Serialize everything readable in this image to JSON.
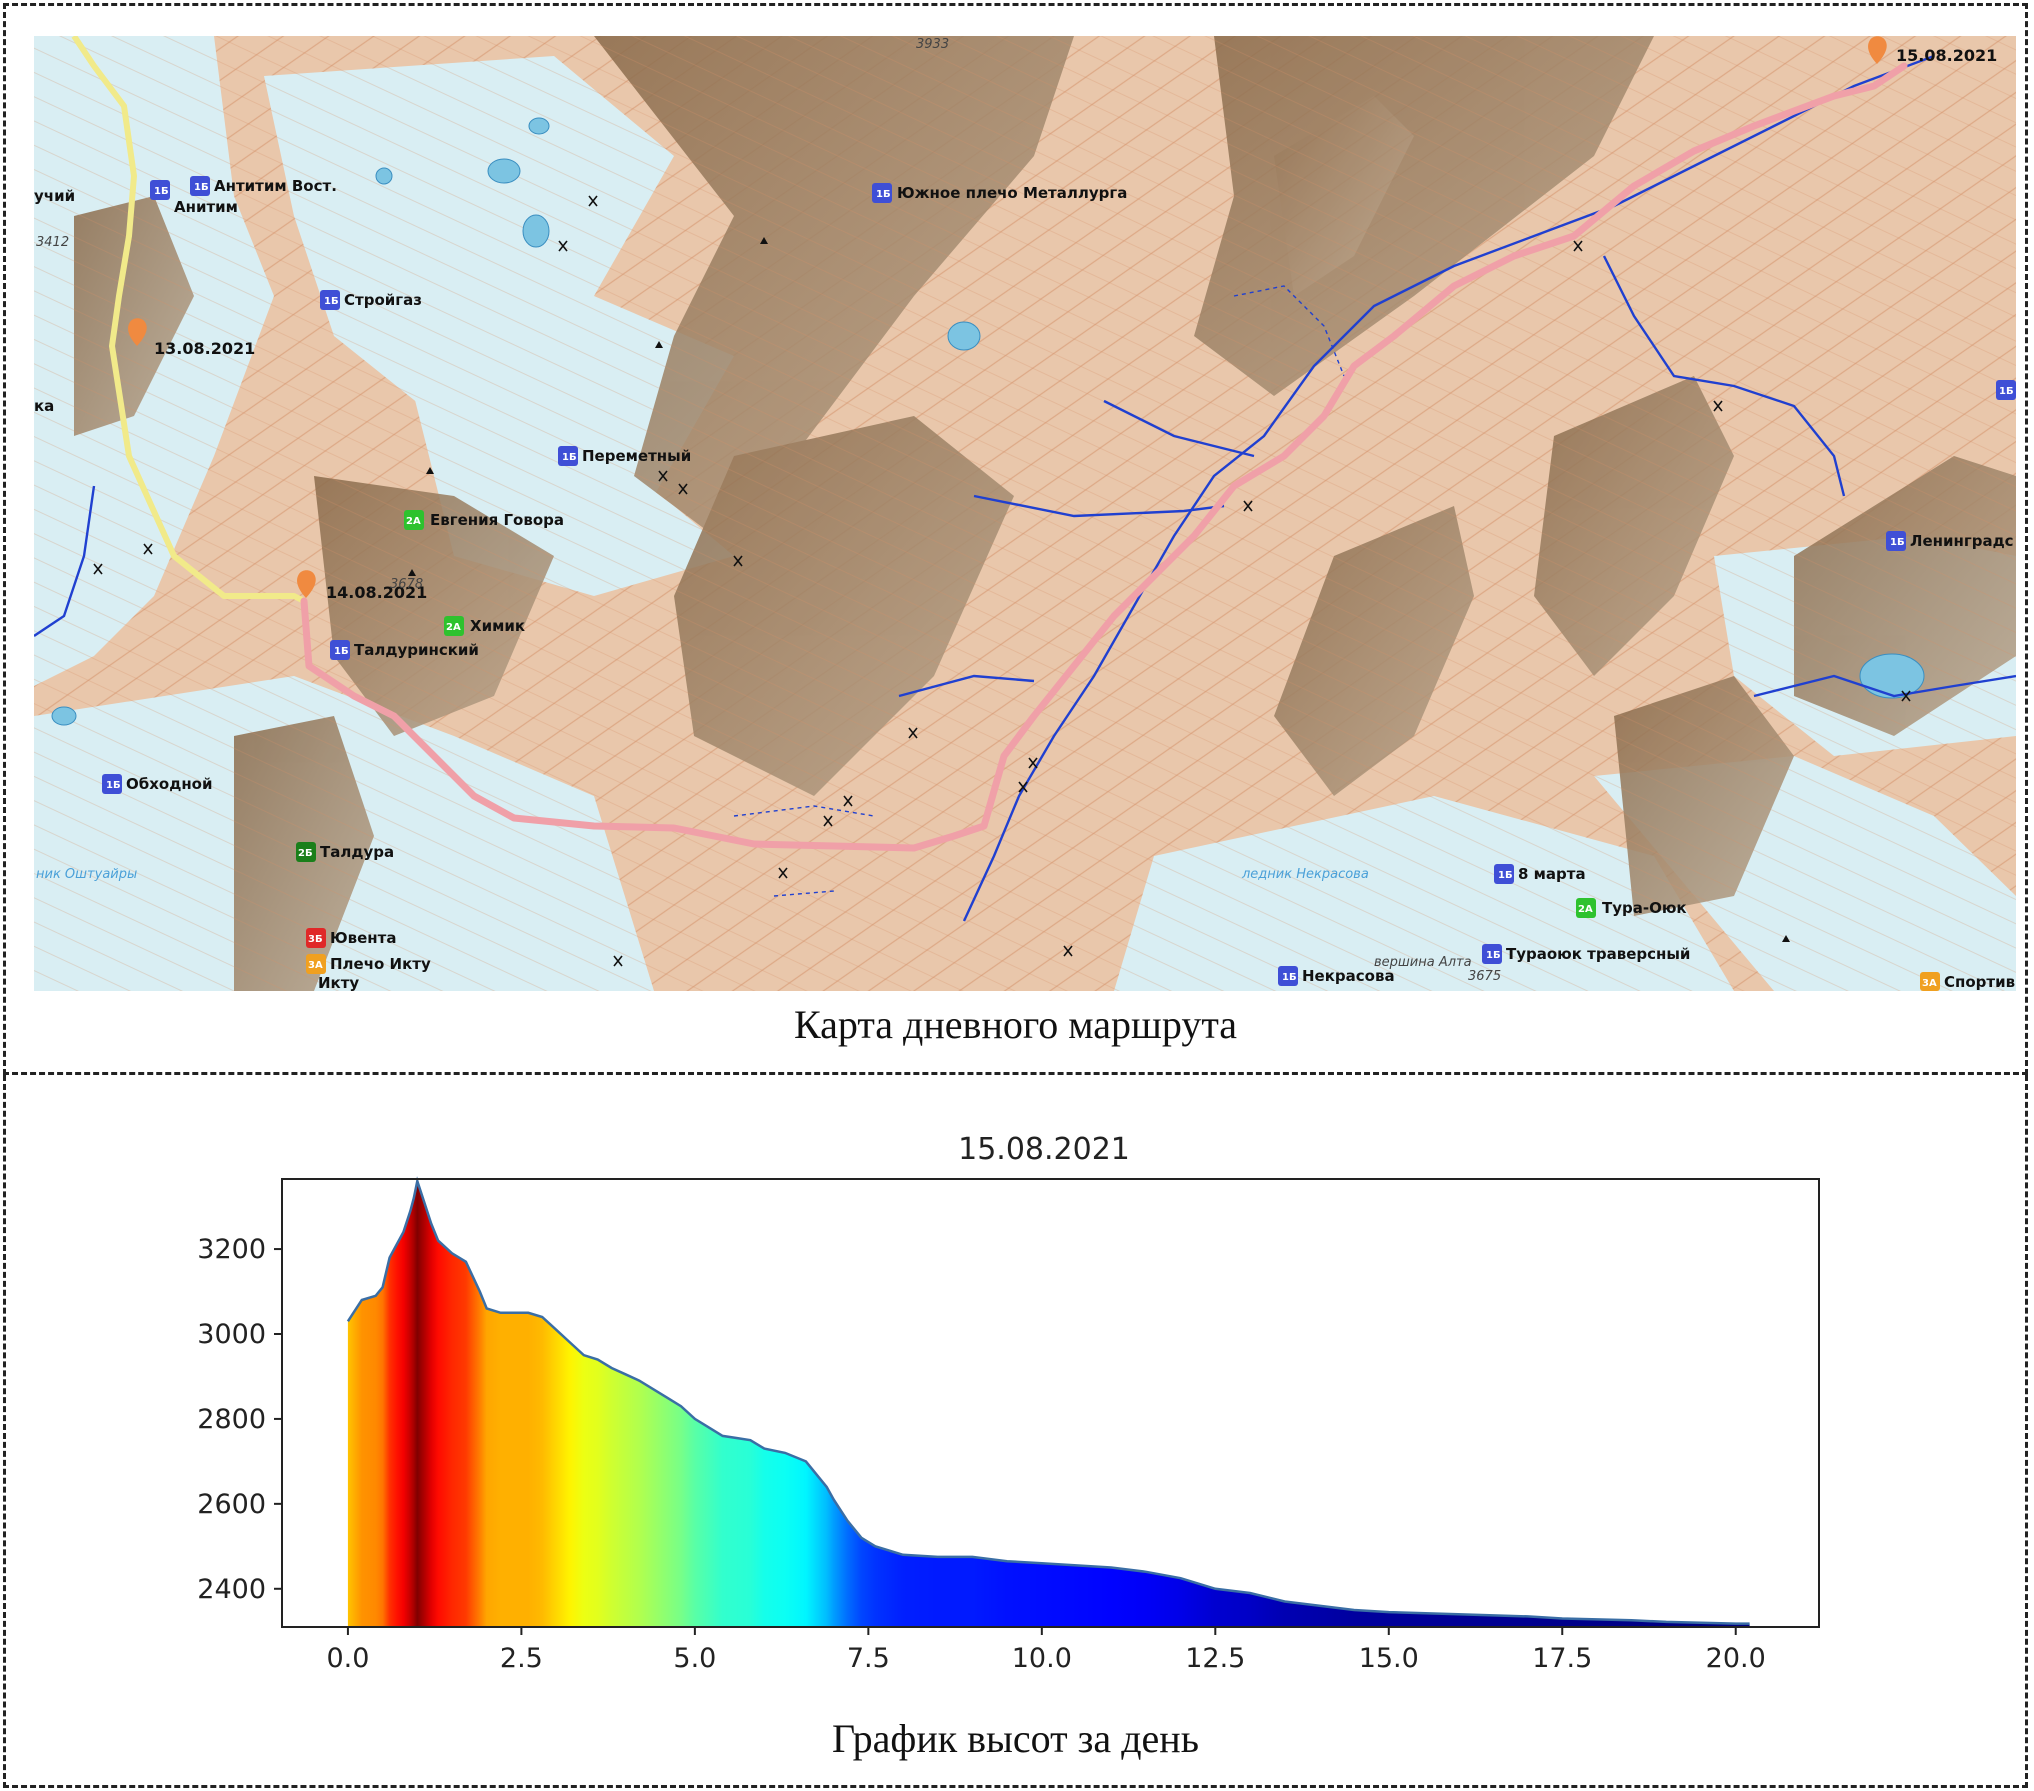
{
  "map_caption": "Карта дневного маршрута",
  "chart_caption": "График высот за день",
  "colors": {
    "route_today": "#f0a0a8",
    "route_prev": "#f1ea8a",
    "river": "#2040d0",
    "marker": "#f08a40",
    "badge_1b": "#3f4fd6",
    "badge_2a": "#2ec22e",
    "badge_2b": "#1a7f1a",
    "badge_3b": "#e02828",
    "badge_3a": "#f0a020"
  },
  "map": {
    "dates": [
      "13.08.2021",
      "14.08.2021",
      "15.08.2021"
    ],
    "peaks": [
      {
        "grade": "1Б",
        "name": "Антитим Вост."
      },
      {
        "grade": "",
        "name": "Анитим"
      },
      {
        "grade": "1Б",
        "name": "Южное плечо Металлурга"
      },
      {
        "grade": "1Б",
        "name": "Стройгаз"
      },
      {
        "grade": "1Б",
        "name": "Переметный"
      },
      {
        "grade": "2А",
        "name": "Евгения Говора"
      },
      {
        "grade": "2А",
        "name": "Химик"
      },
      {
        "grade": "1Б",
        "name": "Талдуринский"
      },
      {
        "grade": "1Б",
        "name": "Обходной"
      },
      {
        "grade": "2Б",
        "name": "Талдура"
      },
      {
        "grade": "3Б",
        "name": "Ювента"
      },
      {
        "grade": "3А",
        "name": "Плечо Икту"
      },
      {
        "grade": "",
        "name": "Икту"
      },
      {
        "grade": "1Б",
        "name": "Ленинградс"
      },
      {
        "grade": "1Б",
        "name": "8 марта"
      },
      {
        "grade": "2А",
        "name": "Тура-Оюк"
      },
      {
        "grade": "1Б",
        "name": "Тураоюк траверсный"
      },
      {
        "grade": "1Б",
        "name": "Некрасова"
      },
      {
        "grade": "3А",
        "name": "Спортив"
      },
      {
        "grade": "",
        "name": "учий"
      },
      {
        "grade": "",
        "name": "ка"
      },
      {
        "grade": "1Б",
        "name": ""
      }
    ],
    "elevations": [
      "3933",
      "3412",
      "3678",
      "3675"
    ],
    "water_labels": [
      "ник Оштуайры",
      "ледник Некрасова"
    ],
    "summit_label": "вершина Алта"
  },
  "chart_data": {
    "type": "area",
    "title": "15.08.2021",
    "xlabel": "",
    "ylabel": "",
    "xlim": [
      -0.95,
      21.2
    ],
    "ylim": [
      2310,
      3365
    ],
    "xticks": [
      0.0,
      2.5,
      5.0,
      7.5,
      10.0,
      12.5,
      15.0,
      17.5,
      20.0
    ],
    "xtick_labels": [
      "0.0",
      "2.5",
      "5.0",
      "7.5",
      "10.0",
      "12.5",
      "15.0",
      "17.5",
      "20.0"
    ],
    "yticks": [
      2400,
      2600,
      2800,
      3000,
      3200
    ],
    "ytick_labels": [
      "2400",
      "2600",
      "2800",
      "3000",
      "3200"
    ],
    "colormap": "jet",
    "x": [
      0.0,
      0.2,
      0.4,
      0.5,
      0.6,
      0.7,
      0.8,
      0.9,
      0.95,
      1.0,
      1.1,
      1.2,
      1.3,
      1.5,
      1.7,
      1.9,
      2.0,
      2.2,
      2.4,
      2.6,
      2.8,
      3.0,
      3.2,
      3.4,
      3.6,
      3.8,
      4.0,
      4.2,
      4.5,
      4.8,
      5.0,
      5.2,
      5.4,
      5.6,
      5.8,
      6.0,
      6.3,
      6.6,
      6.9,
      7.0,
      7.2,
      7.4,
      7.6,
      7.8,
      8.0,
      8.5,
      9.0,
      9.5,
      10.0,
      10.5,
      11.0,
      11.5,
      12.0,
      12.5,
      13.0,
      13.5,
      14.0,
      14.5,
      15.0,
      16.0,
      17.0,
      17.5,
      18.0,
      18.5,
      19.0,
      19.5,
      20.0,
      20.2
    ],
    "y": [
      3030,
      3080,
      3090,
      3110,
      3180,
      3210,
      3240,
      3290,
      3320,
      3360,
      3310,
      3260,
      3220,
      3190,
      3170,
      3100,
      3060,
      3050,
      3050,
      3050,
      3040,
      3010,
      2980,
      2950,
      2940,
      2920,
      2905,
      2890,
      2860,
      2830,
      2800,
      2780,
      2760,
      2755,
      2750,
      2730,
      2720,
      2700,
      2640,
      2610,
      2560,
      2520,
      2500,
      2490,
      2480,
      2475,
      2475,
      2465,
      2460,
      2455,
      2450,
      2440,
      2425,
      2400,
      2390,
      2370,
      2360,
      2350,
      2345,
      2340,
      2335,
      2330,
      2328,
      2326,
      2322,
      2320,
      2318,
      2318
    ]
  }
}
